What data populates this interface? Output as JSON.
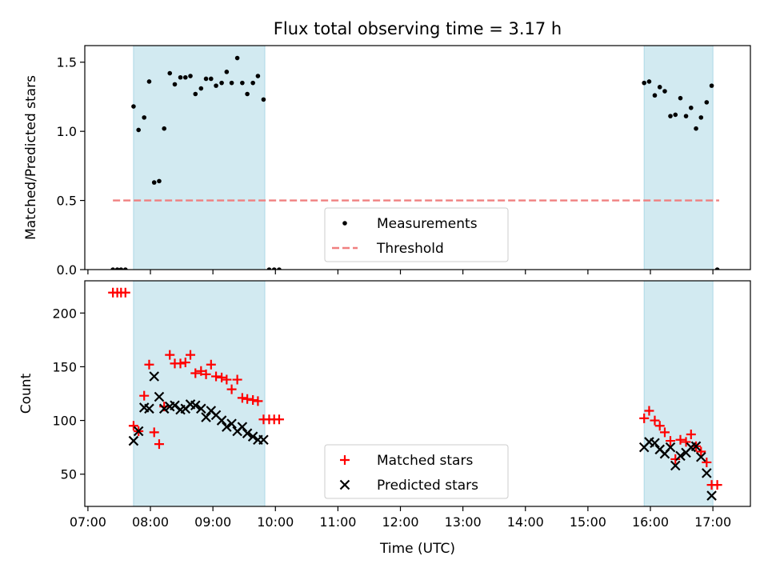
{
  "chart_data": {
    "title": "Flux total observing time = 3.17 h",
    "x_axis": {
      "label": "Time (UTC)",
      "unit": "hours UTC",
      "range": [
        6.95,
        17.6
      ],
      "ticks": [
        {
          "value": 7,
          "label": "07:00"
        },
        {
          "value": 8,
          "label": "08:00"
        },
        {
          "value": 9,
          "label": "09:00"
        },
        {
          "value": 10,
          "label": "10:00"
        },
        {
          "value": 11,
          "label": "11:00"
        },
        {
          "value": 12,
          "label": "12:00"
        },
        {
          "value": 13,
          "label": "13:00"
        },
        {
          "value": 14,
          "label": "14:00"
        },
        {
          "value": 15,
          "label": "15:00"
        },
        {
          "value": 16,
          "label": "16:00"
        },
        {
          "value": 17,
          "label": "17:00"
        }
      ]
    },
    "observing_windows": [
      [
        7.73,
        9.83
      ],
      [
        15.9,
        17.0
      ]
    ],
    "window_color": "#add8e6",
    "panels": [
      {
        "id": "ratio",
        "type": "scatter",
        "ylabel": "Matched/Predicted stars",
        "ylim": [
          0,
          1.62
        ],
        "yticks": [
          {
            "value": 0,
            "label": "0.0"
          },
          {
            "value": 0.5,
            "label": "0.5"
          },
          {
            "value": 1.0,
            "label": "1.0"
          },
          {
            "value": 1.5,
            "label": "1.5"
          }
        ],
        "series": [
          {
            "name": "Measurements",
            "marker": "dot",
            "color": "#000000",
            "x": [
              7.4,
              7.47,
              7.53,
              7.6,
              7.73,
              7.81,
              7.9,
              7.98,
              8.06,
              8.14,
              8.22,
              8.31,
              8.39,
              8.48,
              8.56,
              8.64,
              8.72,
              8.81,
              8.89,
              8.97,
              9.05,
              9.14,
              9.22,
              9.3,
              9.39,
              9.47,
              9.55,
              9.64,
              9.72,
              9.81,
              9.9,
              9.98,
              10.06,
              15.9,
              15.98,
              16.07,
              16.15,
              16.23,
              16.32,
              16.4,
              16.48,
              16.57,
              16.65,
              16.73,
              16.81,
              16.9,
              16.98,
              17.07
            ],
            "y": [
              0,
              0,
              0,
              0,
              1.18,
              1.01,
              1.1,
              1.36,
              0.63,
              0.64,
              1.02,
              1.42,
              1.34,
              1.39,
              1.39,
              1.4,
              1.27,
              1.31,
              1.38,
              1.38,
              1.33,
              1.35,
              1.43,
              1.35,
              1.53,
              1.35,
              1.27,
              1.35,
              1.4,
              1.23,
              0,
              0,
              0,
              1.35,
              1.36,
              1.26,
              1.32,
              1.29,
              1.11,
              1.12,
              1.24,
              1.11,
              1.17,
              1.02,
              1.1,
              1.21,
              1.33,
              0
            ]
          },
          {
            "name": "Threshold",
            "style": "dashed-line",
            "color": "#f08080",
            "x": [
              7.4,
              17.1
            ],
            "y": [
              0.5,
              0.5
            ]
          }
        ],
        "legend": {
          "placement": "lower-center",
          "entries": [
            "Measurements",
            "Threshold"
          ]
        }
      },
      {
        "id": "counts",
        "type": "scatter",
        "ylabel": "Count",
        "ylim": [
          20,
          230
        ],
        "yticks": [
          {
            "value": 50,
            "label": "50"
          },
          {
            "value": 100,
            "label": "100"
          },
          {
            "value": 150,
            "label": "150"
          },
          {
            "value": 200,
            "label": "200"
          }
        ],
        "series": [
          {
            "name": "Matched stars",
            "marker": "plus",
            "color": "#ff0000",
            "x": [
              7.4,
              7.47,
              7.53,
              7.6,
              7.73,
              7.81,
              7.9,
              7.98,
              8.06,
              8.14,
              8.22,
              8.31,
              8.39,
              8.48,
              8.56,
              8.64,
              8.72,
              8.81,
              8.89,
              8.97,
              9.05,
              9.14,
              9.22,
              9.3,
              9.39,
              9.47,
              9.55,
              9.64,
              9.72,
              9.81,
              9.9,
              9.98,
              10.06,
              15.9,
              15.98,
              16.07,
              16.15,
              16.23,
              16.32,
              16.4,
              16.48,
              16.57,
              16.65,
              16.73,
              16.81,
              16.9,
              16.98,
              17.07
            ],
            "y": [
              219,
              219,
              219,
              219,
              95,
              90,
              123,
              152,
              89,
              78,
              113,
              161,
              153,
              153,
              154,
              161,
              144,
              146,
              143,
              152,
              141,
              140,
              138,
              129,
              138,
              121,
              120,
              119,
              118,
              101,
              101,
              101,
              101,
              102,
              109,
              100,
              95,
              89,
              81,
              64,
              82,
              80,
              87,
              76,
              71,
              61,
              40,
              40
            ]
          },
          {
            "name": "Predicted stars",
            "marker": "x",
            "color": "#000000",
            "x": [
              7.73,
              7.81,
              7.9,
              7.98,
              8.06,
              8.14,
              8.22,
              8.31,
              8.39,
              8.48,
              8.56,
              8.64,
              8.72,
              8.81,
              8.89,
              8.97,
              9.05,
              9.14,
              9.22,
              9.3,
              9.39,
              9.47,
              9.55,
              9.64,
              9.72,
              9.81,
              15.9,
              15.98,
              16.07,
              16.15,
              16.23,
              16.32,
              16.4,
              16.48,
              16.57,
              16.65,
              16.73,
              16.81,
              16.9,
              16.98
            ],
            "y": [
              81,
              90,
              112,
              111,
              141,
              122,
              111,
              113,
              114,
              110,
              111,
              115,
              114,
              111,
              103,
              109,
              105,
              100,
              94,
              97,
              90,
              94,
              88,
              85,
              82,
              82,
              75,
              80,
              79,
              73,
              69,
              75,
              58,
              67,
              70,
              75,
              76,
              66,
              51,
              30
            ]
          }
        ],
        "legend": {
          "placement": "lower-center",
          "entries": [
            "Matched stars",
            "Predicted stars"
          ]
        }
      }
    ]
  }
}
